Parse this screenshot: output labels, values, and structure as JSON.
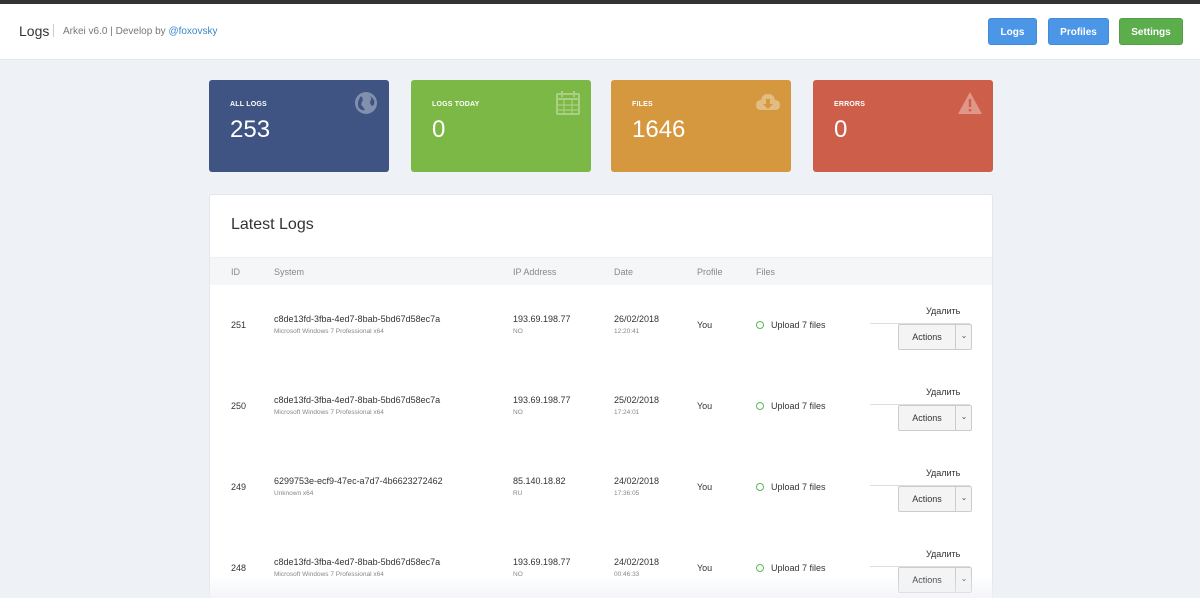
{
  "header": {
    "title": "Logs",
    "subtitle_prefix": "Arkei v6.0 | Develop by ",
    "subtitle_link": "@foxovsky",
    "nav": {
      "logs": "Logs",
      "profiles": "Profiles",
      "settings": "Settings"
    }
  },
  "tiles": [
    {
      "label": "ALL LOGS",
      "value": "253",
      "icon": "globe-icon",
      "color": "#3f5482"
    },
    {
      "label": "LOGS TODAY",
      "value": "0",
      "icon": "calendar-icon",
      "color": "#7cb845"
    },
    {
      "label": "FILES",
      "value": "1646",
      "icon": "cloud-download-icon",
      "color": "#d5983f"
    },
    {
      "label": "ERRORS",
      "value": "0",
      "icon": "warning-icon",
      "color": "#cd5f4a"
    }
  ],
  "latest": {
    "title": "Latest Logs",
    "columns": {
      "id": "ID",
      "system": "System",
      "ip": "IP Address",
      "date": "Date",
      "profile": "Profile",
      "files": "Files"
    },
    "rows": [
      {
        "id": "251",
        "system": "c8de13fd-3fba-4ed7-8bab-5bd67d58ec7a",
        "os": "Microsoft Windows 7 Professional x64",
        "ip": "193.69.198.77",
        "country": "NO",
        "date": "26/02/2018",
        "time": "12:20:41",
        "profile": "You",
        "files": "Upload 7 files",
        "delete": "Удалить",
        "actions": "Actions"
      },
      {
        "id": "250",
        "system": "c8de13fd-3fba-4ed7-8bab-5bd67d58ec7a",
        "os": "Microsoft Windows 7 Professional x64",
        "ip": "193.69.198.77",
        "country": "NO",
        "date": "25/02/2018",
        "time": "17:24:01",
        "profile": "You",
        "files": "Upload 7 files",
        "delete": "Удалить",
        "actions": "Actions"
      },
      {
        "id": "249",
        "system": "6299753e-ecf9-47ec-a7d7-4b6623272462",
        "os": "Unknown x64",
        "ip": "85.140.18.82",
        "country": "RU",
        "date": "24/02/2018",
        "time": "17:36:05",
        "profile": "You",
        "files": "Upload 7 files",
        "delete": "Удалить",
        "actions": "Actions"
      },
      {
        "id": "248",
        "system": "c8de13fd-3fba-4ed7-8bab-5bd67d58ec7a",
        "os": "Microsoft Windows 7 Professional x64",
        "ip": "193.69.198.77",
        "country": "NO",
        "date": "24/02/2018",
        "time": "00:46:33",
        "profile": "You",
        "files": "Upload 7 files",
        "delete": "Удалить",
        "actions": "Actions"
      }
    ]
  }
}
